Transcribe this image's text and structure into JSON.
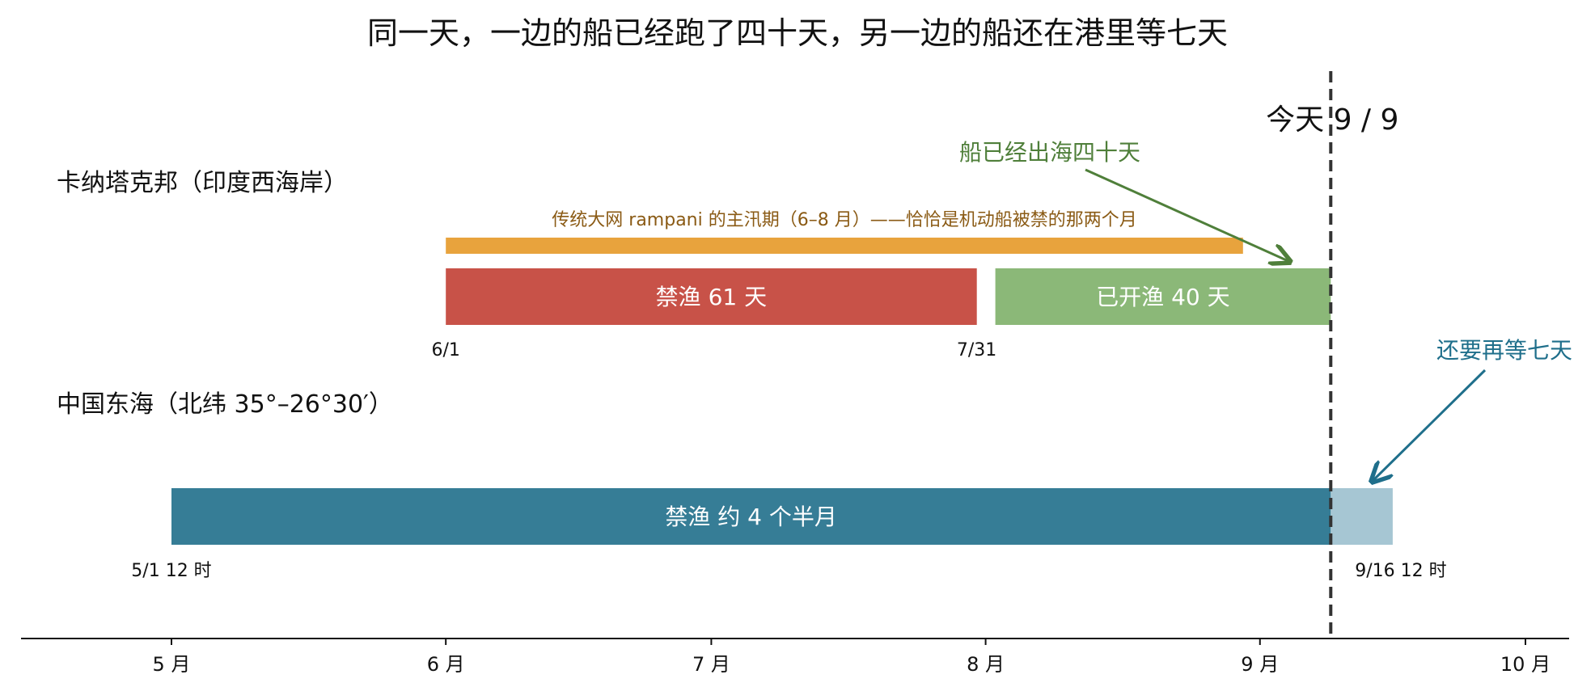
{
  "chart_data": {
    "type": "timeline",
    "title": "同一天，一边的船已经跑了四十天，另一边的船还在港里等七天",
    "x_axis": {
      "range": [
        "2024-04-19",
        "2024-10-26"
      ],
      "ticks": [
        {
          "date": "2024-05-01",
          "label": "5 月"
        },
        {
          "date": "2024-06-01",
          "label": "6 月"
        },
        {
          "date": "2024-07-01",
          "label": "7 月"
        },
        {
          "date": "2024-08-01",
          "label": "8 月"
        },
        {
          "date": "2024-09-01",
          "label": "9 月"
        },
        {
          "date": "2024-10-01",
          "label": "10 月"
        }
      ]
    },
    "today": {
      "date": "2024-09-09",
      "label": "今天 9 / 9"
    },
    "rows": [
      {
        "name": "卡纳塔克邦（印度西海岸）",
        "bars": [
          {
            "id": "rampani",
            "start": "2024-06-01",
            "end": "2024-08-31",
            "label": "传统大网 rampani 的主汛期（6–8 月）——恰恰是机动船被禁的那两个月",
            "color": "#E8A33D",
            "style": "thin"
          },
          {
            "id": "karnataka-ban",
            "start": "2024-06-01",
            "end": "2024-07-31",
            "label": "禁渔 61 天",
            "color": "#C85248",
            "style": "main"
          },
          {
            "id": "karnataka-open",
            "start": "2024-08-01",
            "end": "2024-09-09",
            "label": "已开渔 40 天",
            "color": "#8BB878",
            "style": "main"
          }
        ],
        "date_labels": [
          {
            "date": "2024-06-01",
            "text": "6/1"
          },
          {
            "date": "2024-07-31",
            "text": "7/31"
          }
        ]
      },
      {
        "name": "中国东海（北纬 35°–26°30′）",
        "bars": [
          {
            "id": "china-ban",
            "start": "2024-05-01",
            "end": "2024-09-09",
            "label": "禁渔 约 4 个半月",
            "color": "#367D96",
            "style": "main"
          },
          {
            "id": "china-remaining",
            "start": "2024-09-09",
            "end": "2024-09-16",
            "label": "",
            "color": "#A6C6D3",
            "style": "main"
          }
        ],
        "date_labels": [
          {
            "date": "2024-05-01",
            "text": "5/1 12 时"
          },
          {
            "date": "2024-09-16",
            "text": "9/16 12 时"
          }
        ]
      }
    ],
    "annotations": [
      {
        "id": "sea40",
        "text": "船已经出海四十天",
        "color": "#4F7F3A",
        "points_to": "karnataka-open"
      },
      {
        "id": "wait7",
        "text": "还要再等七天",
        "color": "#1F6F8B",
        "points_to": "china-remaining"
      }
    ]
  }
}
